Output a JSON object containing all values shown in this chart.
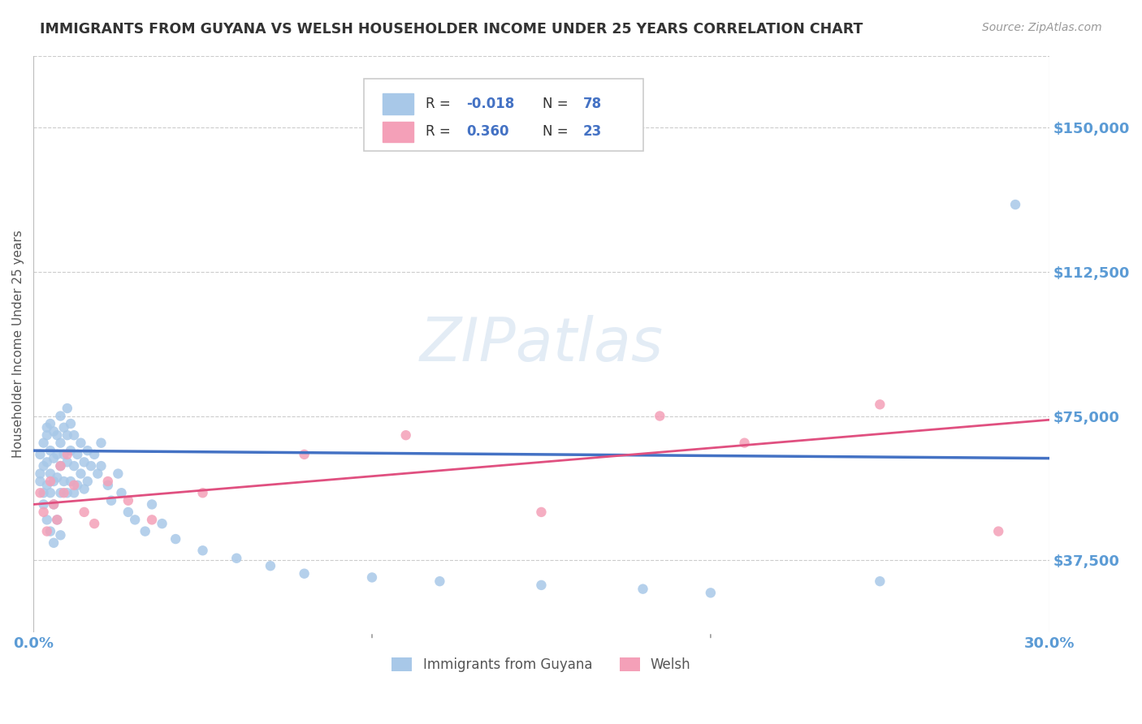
{
  "title": "IMMIGRANTS FROM GUYANA VS WELSH HOUSEHOLDER INCOME UNDER 25 YEARS CORRELATION CHART",
  "source": "Source: ZipAtlas.com",
  "ylabel": "Householder Income Under 25 years",
  "x_min": 0.0,
  "x_max": 0.3,
  "y_min": 18750,
  "y_max": 168750,
  "yticks": [
    37500,
    75000,
    112500,
    150000
  ],
  "ytick_labels": [
    "$37,500",
    "$75,000",
    "$112,500",
    "$150,000"
  ],
  "xticks": [
    0.0,
    0.05,
    0.1,
    0.15,
    0.2,
    0.25,
    0.3
  ],
  "xtick_labels": [
    "0.0%",
    "",
    "",
    "",
    "",
    "",
    "30.0%"
  ],
  "legend_label1": "Immigrants from Guyana",
  "legend_label2": "Welsh",
  "R1": -0.018,
  "N1": 78,
  "R2": 0.36,
  "N2": 23,
  "color_blue": "#A8C8E8",
  "color_pink": "#F4A0B8",
  "color_blue_line": "#4472C4",
  "color_pink_line": "#E05080",
  "color_axis_text": "#5B9BD5",
  "blue_points_x": [
    0.002,
    0.002,
    0.002,
    0.003,
    0.003,
    0.003,
    0.003,
    0.004,
    0.004,
    0.004,
    0.004,
    0.004,
    0.005,
    0.005,
    0.005,
    0.005,
    0.005,
    0.006,
    0.006,
    0.006,
    0.006,
    0.006,
    0.007,
    0.007,
    0.007,
    0.007,
    0.008,
    0.008,
    0.008,
    0.008,
    0.008,
    0.009,
    0.009,
    0.009,
    0.01,
    0.01,
    0.01,
    0.01,
    0.011,
    0.011,
    0.011,
    0.012,
    0.012,
    0.012,
    0.013,
    0.013,
    0.014,
    0.014,
    0.015,
    0.015,
    0.016,
    0.016,
    0.017,
    0.018,
    0.019,
    0.02,
    0.02,
    0.022,
    0.023,
    0.025,
    0.026,
    0.028,
    0.03,
    0.033,
    0.035,
    0.038,
    0.042,
    0.05,
    0.06,
    0.07,
    0.08,
    0.1,
    0.12,
    0.15,
    0.18,
    0.2,
    0.25,
    0.29
  ],
  "blue_points_y": [
    65000,
    58000,
    60000,
    55000,
    62000,
    68000,
    52000,
    70000,
    63000,
    57000,
    48000,
    72000,
    66000,
    73000,
    60000,
    55000,
    45000,
    64000,
    71000,
    58000,
    52000,
    42000,
    65000,
    59000,
    70000,
    48000,
    75000,
    68000,
    62000,
    55000,
    44000,
    72000,
    65000,
    58000,
    77000,
    70000,
    63000,
    55000,
    73000,
    66000,
    58000,
    70000,
    62000,
    55000,
    65000,
    57000,
    68000,
    60000,
    63000,
    56000,
    66000,
    58000,
    62000,
    65000,
    60000,
    68000,
    62000,
    57000,
    53000,
    60000,
    55000,
    50000,
    48000,
    45000,
    52000,
    47000,
    43000,
    40000,
    38000,
    36000,
    34000,
    33000,
    32000,
    31000,
    30000,
    29000,
    32000,
    130000
  ],
  "pink_points_x": [
    0.002,
    0.003,
    0.004,
    0.005,
    0.006,
    0.007,
    0.008,
    0.009,
    0.01,
    0.012,
    0.015,
    0.018,
    0.022,
    0.028,
    0.035,
    0.05,
    0.08,
    0.11,
    0.15,
    0.185,
    0.21,
    0.25,
    0.285
  ],
  "pink_points_y": [
    55000,
    50000,
    45000,
    58000,
    52000,
    48000,
    62000,
    55000,
    65000,
    57000,
    50000,
    47000,
    58000,
    53000,
    48000,
    55000,
    65000,
    70000,
    50000,
    75000,
    68000,
    78000,
    45000
  ]
}
